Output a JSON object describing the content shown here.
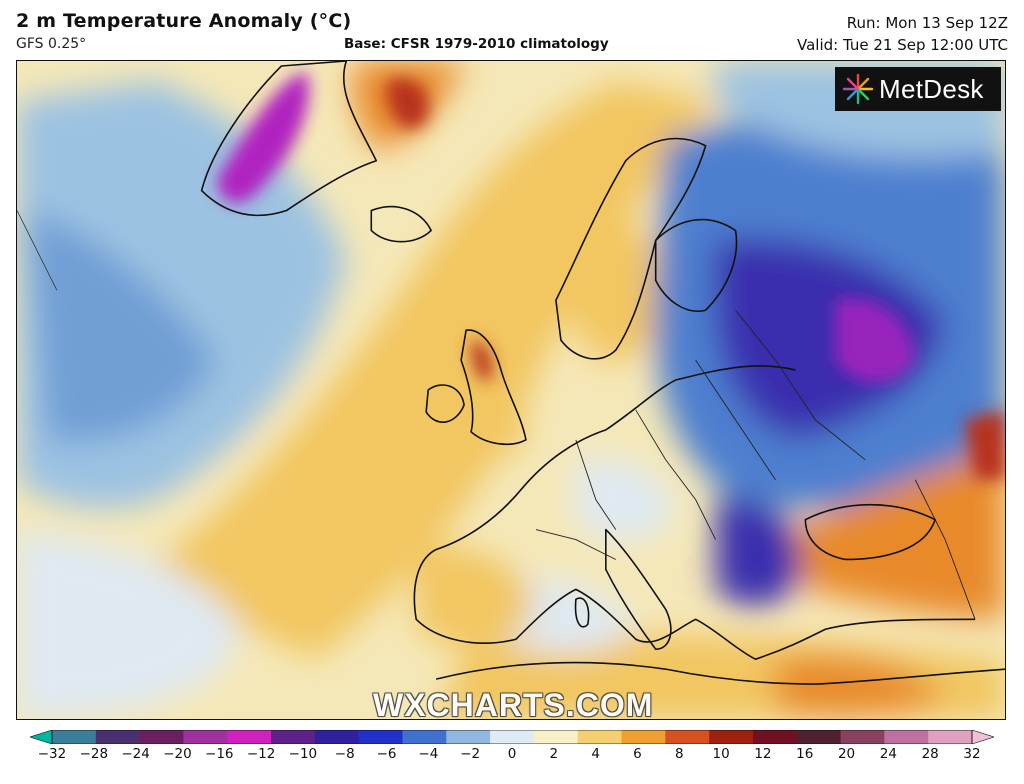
{
  "header": {
    "title": "2 m Temperature Anomaly (°C)",
    "model": "GFS 0.25°",
    "base": "Base: CFSR 1979-2010 climatology",
    "run": "Run: Mon 13 Sep 12Z",
    "valid": "Valid: Tue 21 Sep 12:00 UTC"
  },
  "logo": {
    "text": "MetDesk"
  },
  "watermark": "WXCHARTS.COM",
  "colorbar": {
    "ticks": [
      "−32",
      "−28",
      "−24",
      "−20",
      "−16",
      "−12",
      "−10",
      "−8",
      "−6",
      "−4",
      "−2",
      "0",
      "2",
      "4",
      "6",
      "8",
      "10",
      "12",
      "16",
      "20",
      "24",
      "28",
      "32"
    ],
    "colors": [
      "#00b6a0",
      "#3a7f9a",
      "#4a3070",
      "#6a2060",
      "#a030a0",
      "#d020c0",
      "#60208a",
      "#3020a0",
      "#2030c8",
      "#4070d0",
      "#90b8e0",
      "#e0ecf5",
      "#f8f0c8",
      "#f5d070",
      "#f0a030",
      "#d85020",
      "#a02010",
      "#701020",
      "#502030",
      "#8a4060",
      "#c070a0",
      "#e0a0c0",
      "#f0c0d8"
    ]
  },
  "map": {
    "colors": {
      "warm_light": "#f5e8b8",
      "warm": "#f2c660",
      "warm_strong": "#e88a2a",
      "hot": "#b8301a",
      "cool_light": "#dfe9f2",
      "cool": "#9cc2e2",
      "cold": "#4d7fcf",
      "very_cold": "#3a2fae",
      "extreme_cold": "#b020c0",
      "coast": "#111111"
    }
  }
}
